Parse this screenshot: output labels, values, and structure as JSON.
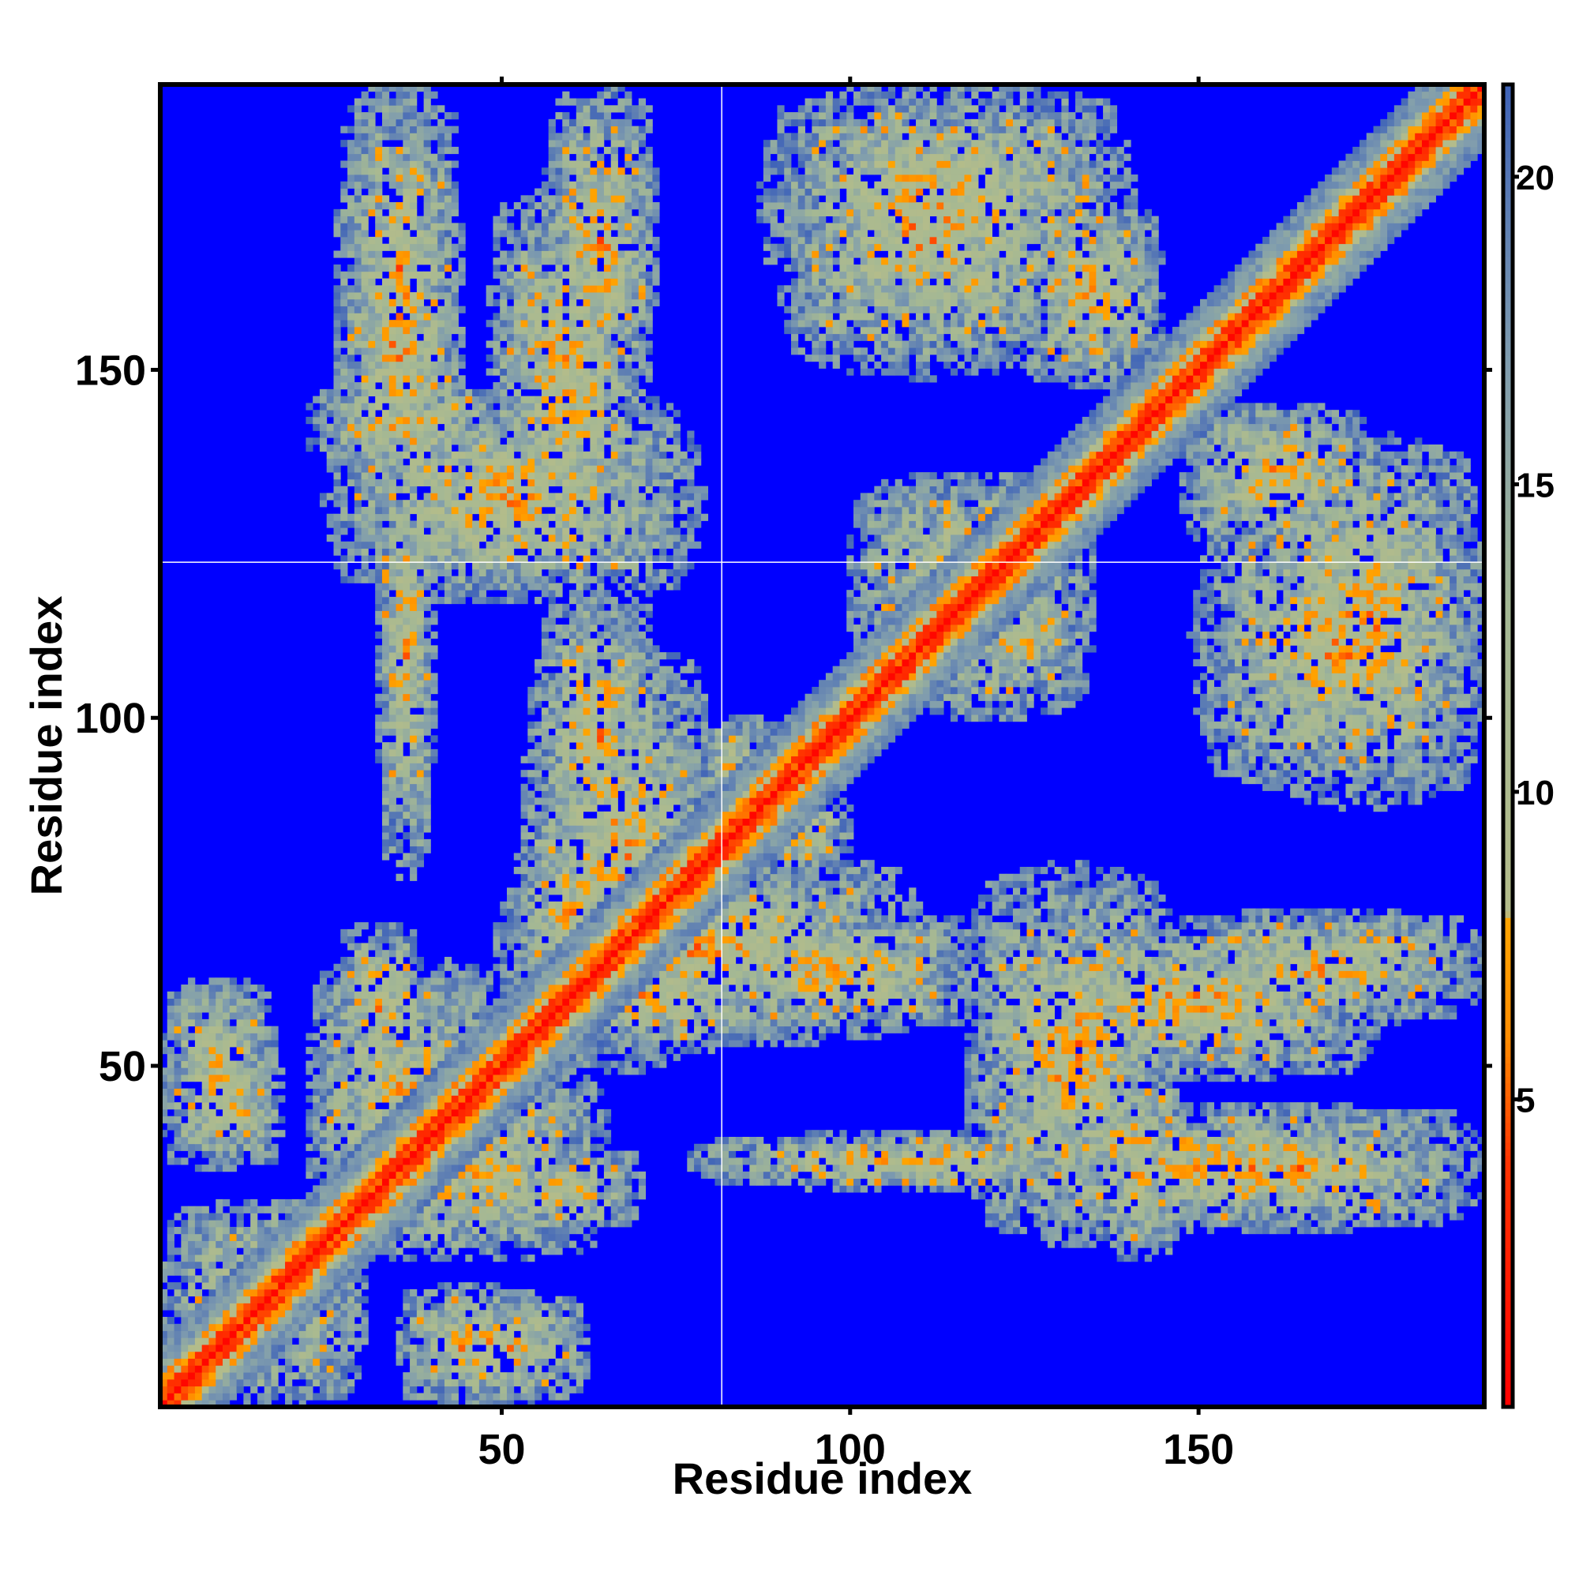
{
  "chart_data": {
    "type": "heatmap",
    "title": "",
    "xlabel": "Residue index",
    "ylabel": "Residue index",
    "xlim": [
      1,
      191
    ],
    "ylim": [
      1,
      191
    ],
    "x_ticks": [
      50,
      100,
      150
    ],
    "y_ticks": [
      50,
      100,
      150
    ],
    "colorbar": {
      "ticks": [
        5,
        10,
        15,
        20
      ],
      "range": [
        0,
        21.5
      ],
      "colors": [
        {
          "value": 0,
          "color": "#ff0000"
        },
        {
          "value": 4,
          "color": "#ff3300"
        },
        {
          "value": 6,
          "color": "#ff8c00"
        },
        {
          "value": 8,
          "color": "#ffa500"
        },
        {
          "value": 8.01,
          "color": "#b4bc8a"
        },
        {
          "value": 13,
          "color": "#a4b894"
        },
        {
          "value": 17,
          "color": "#7f9cae"
        },
        {
          "value": 21.5,
          "color": "#3f63b8"
        }
      ],
      "out_of_range_color": "#0000ff"
    },
    "grid": false,
    "notes_visible": "distance map: diagonal band red; off-diagonal contact regions green/orange; background blue",
    "contact_regions": [
      {
        "x": [
          1,
          30
        ],
        "y": [
          1,
          30
        ]
      },
      {
        "x": [
          1,
          17
        ],
        "y": [
          37,
          62
        ]
      },
      {
        "x": [
          22,
          50
        ],
        "y": [
          23,
          65
        ]
      },
      {
        "x": [
          35,
          55
        ],
        "y": [
          1,
          18
        ]
      },
      {
        "x": [
          48,
          70
        ],
        "y": [
          26,
          38
        ]
      },
      {
        "x": [
          52,
          68
        ],
        "y": [
          50,
          90
        ]
      },
      {
        "x": [
          53,
          80
        ],
        "y": [
          50,
          110
        ]
      },
      {
        "x": [
          26,
          44
        ],
        "y": [
          120,
          191
        ]
      },
      {
        "x": [
          48,
          70
        ],
        "y": [
          122,
          176
        ]
      },
      {
        "x": [
          22,
          50
        ],
        "y": [
          136,
          148
        ]
      },
      {
        "x": [
          78,
          118
        ],
        "y": [
          55,
          72
        ]
      },
      {
        "x": [
          78,
          140
        ],
        "y": [
          32,
          40
        ]
      },
      {
        "x": [
          117,
          147
        ],
        "y": [
          25,
          78
        ]
      },
      {
        "x": [
          140,
          191
        ],
        "y": [
          30,
          40
        ]
      },
      {
        "x": [
          145,
          191
        ],
        "y": [
          56,
          72
        ]
      },
      {
        "x": [
          88,
          140
        ],
        "y": [
          158,
          191
        ]
      },
      {
        "x": [
          125,
          145
        ],
        "y": [
          148,
          175
        ]
      },
      {
        "x": [
          150,
          191
        ],
        "y": [
          90,
          131
        ]
      },
      {
        "x": [
          105,
          135
        ],
        "y": [
          100,
          135
        ]
      },
      {
        "x": [
          85,
          100
        ],
        "y": [
          78,
          90
        ]
      }
    ]
  }
}
